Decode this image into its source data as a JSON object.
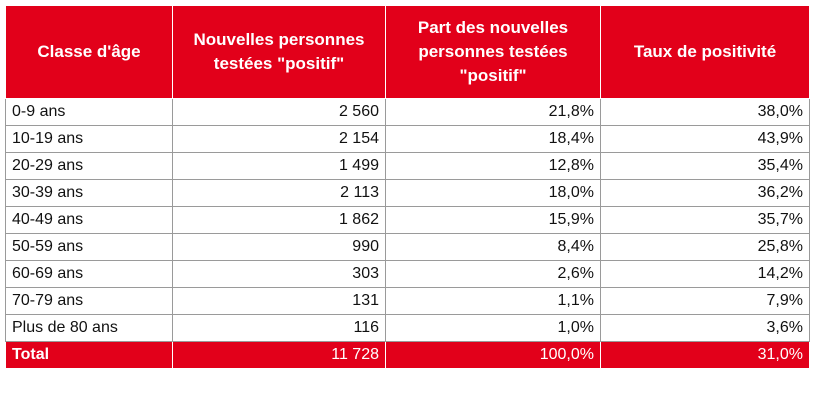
{
  "table": {
    "headers": [
      "Classe d'âge",
      "Nouvelles personnes testées \"positif\"",
      "Part des nouvelles personnes testées \"positif\"",
      "Taux de positivité"
    ],
    "rows": [
      [
        "0-9 ans",
        "2 560",
        "21,8%",
        "38,0%"
      ],
      [
        "10-19 ans",
        "2 154",
        "18,4%",
        "43,9%"
      ],
      [
        "20-29 ans",
        "1 499",
        "12,8%",
        "35,4%"
      ],
      [
        "30-39 ans",
        "2 113",
        "18,0%",
        "36,2%"
      ],
      [
        "40-49 ans",
        "1 862",
        "15,9%",
        "35,7%"
      ],
      [
        "50-59 ans",
        "990",
        "8,4%",
        "25,8%"
      ],
      [
        "60-69 ans",
        "303",
        "2,6%",
        "14,2%"
      ],
      [
        "70-79 ans",
        "131",
        "1,1%",
        "7,9%"
      ],
      [
        "Plus de 80 ans",
        "116",
        "1,0%",
        "3,6%"
      ]
    ],
    "total": [
      "Total",
      "11 728",
      "100,0%",
      "31,0%"
    ]
  }
}
